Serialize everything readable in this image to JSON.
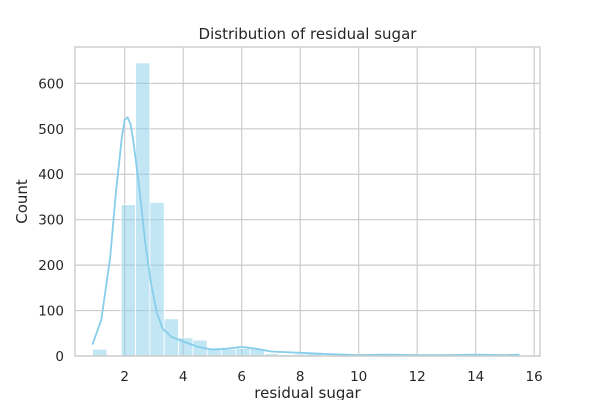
{
  "chart_data": {
    "type": "bar",
    "subtype": "histogram-with-kde",
    "title": "Distribution of residual sugar",
    "xlabel": "residual sugar",
    "ylabel": "Count",
    "xlim": [
      0.3,
      16.2
    ],
    "ylim": [
      0,
      680
    ],
    "xticks": [
      2,
      4,
      6,
      8,
      10,
      12,
      14,
      16
    ],
    "yticks": [
      0,
      100,
      200,
      300,
      400,
      500,
      600
    ],
    "grid": true,
    "legend": "none",
    "color": "#87ceeb",
    "bins": {
      "start": 0.9,
      "width": 0.49,
      "counts": [
        15,
        0,
        333,
        645,
        338,
        82,
        40,
        35,
        18,
        15,
        17,
        16,
        5,
        3,
        4,
        6,
        2,
        1,
        1,
        1,
        3,
        1,
        1,
        2,
        1,
        1,
        3,
        4,
        1,
        2
      ]
    },
    "kde": {
      "x": [
        0.9,
        1.2,
        1.5,
        1.7,
        1.9,
        2.0,
        2.1,
        2.2,
        2.3,
        2.5,
        2.7,
        2.9,
        3.1,
        3.3,
        3.6,
        4.0,
        4.5,
        5.0,
        5.5,
        6.0,
        6.5,
        7.0,
        8.0,
        9.0,
        10.0,
        11.0,
        12.0,
        13.0,
        14.0,
        15.0,
        15.5
      ],
      "y": [
        25,
        80,
        215,
        360,
        480,
        520,
        525,
        510,
        470,
        370,
        250,
        160,
        95,
        60,
        42,
        32,
        20,
        14,
        16,
        20,
        16,
        10,
        7,
        4,
        2,
        3,
        2,
        2,
        3,
        2,
        3
      ]
    }
  }
}
